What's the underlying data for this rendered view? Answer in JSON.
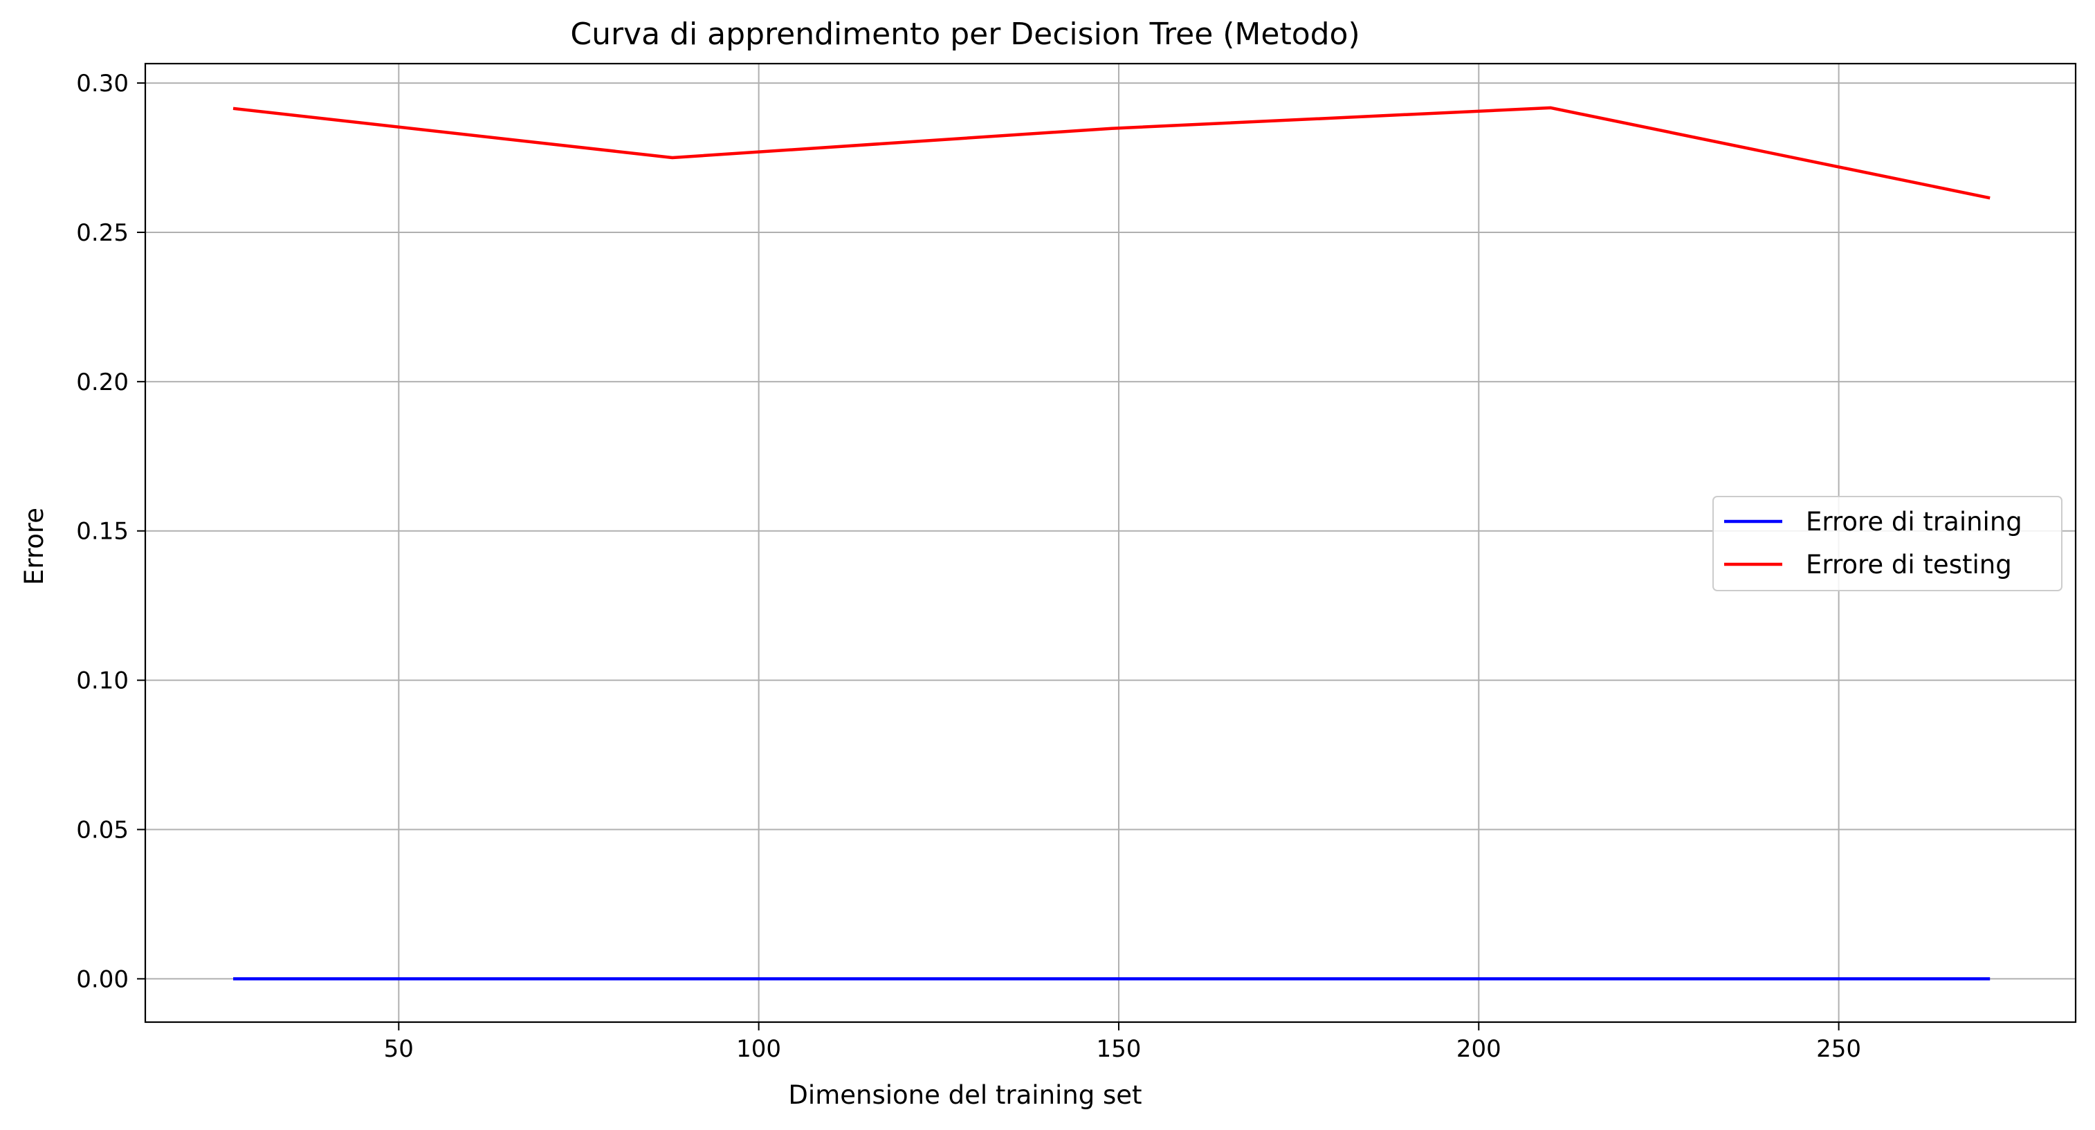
{
  "chart_data": {
    "type": "line",
    "title": "Curva di apprendimento per Decision Tree (Metodo)",
    "xlabel": "Dimensione del training set",
    "ylabel": "Errore",
    "xlim": [
      14.8,
      282.9
    ],
    "ylim": [
      -0.0145,
      0.3065
    ],
    "xticks": [
      50,
      100,
      150,
      200,
      250
    ],
    "yticks": [
      0.0,
      0.05,
      0.1,
      0.15,
      0.2,
      0.25,
      0.3
    ],
    "xtick_labels": [
      "50",
      "100",
      "150",
      "200",
      "250"
    ],
    "ytick_labels": [
      "0.00",
      "0.05",
      "0.10",
      "0.15",
      "0.20",
      "0.25",
      "0.30"
    ],
    "grid": true,
    "legend_position": "center-right",
    "x": [
      27,
      88,
      149,
      210,
      271
    ],
    "series": [
      {
        "name": "Errore di training",
        "color": "#0000ff",
        "values": [
          0.0,
          0.0,
          0.0,
          0.0,
          0.0
        ]
      },
      {
        "name": "Errore di testing",
        "color": "#ff0000",
        "values": [
          0.2915,
          0.275,
          0.2848,
          0.2917,
          0.2615
        ]
      }
    ]
  }
}
